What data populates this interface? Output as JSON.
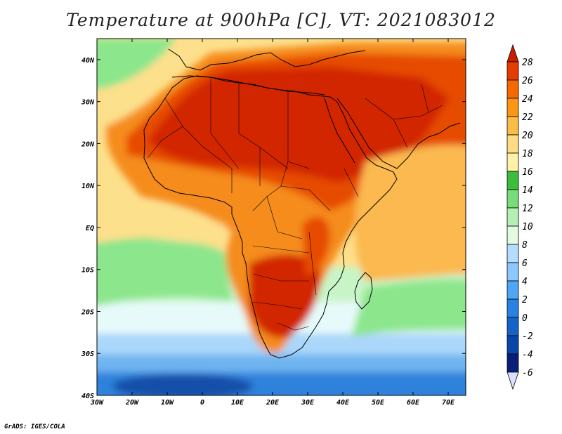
{
  "title": "Temperature at 900hPa [C], VT: 2021083012",
  "credit": "GrADS: IGES/COLA",
  "x_labels": [
    "30W",
    "20W",
    "10W",
    "0",
    "10E",
    "20E",
    "30E",
    "40E",
    "50E",
    "60E",
    "70E"
  ],
  "y_labels": [
    "40N",
    "30N",
    "20N",
    "10N",
    "EQ",
    "10S",
    "20S",
    "30S",
    "40S"
  ],
  "colorbar": {
    "labels": [
      "28",
      "26",
      "24",
      "22",
      "20",
      "18",
      "16",
      "14",
      "12",
      "10",
      "8",
      "6",
      "4",
      "2",
      "0",
      "-2",
      "-4",
      "-6"
    ],
    "colors": [
      "#c81e00",
      "#e63c00",
      "#f56a00",
      "#fa9614",
      "#fbbd46",
      "#fddc82",
      "#fff1a8",
      "#3cbe3c",
      "#78dc78",
      "#b4f0b4",
      "#e1fae1",
      "#b4dcff",
      "#8cc8ff",
      "#50a5f5",
      "#2882e1",
      "#1464c8",
      "#0a46aa",
      "#0a1e78",
      "#dce0ff"
    ],
    "top_color": "#c81e00",
    "bottom_color": "#dce0ff"
  },
  "map_colors": {
    "very_hot": "#d22800",
    "hot": "#e64b05",
    "warm_orange": "#f58c1e",
    "orange_yellow": "#fbb950",
    "yellow": "#fde08c",
    "pale_yellow": "#fff3b4",
    "green": "#46c346",
    "light_green": "#8ce68c",
    "pale_green": "#c8f5c8",
    "cyan_white": "#e6fafa",
    "light_blue": "#aad7fa",
    "blue": "#6eb4f0",
    "deep_blue": "#2d82dc",
    "navy": "#1450aa"
  }
}
